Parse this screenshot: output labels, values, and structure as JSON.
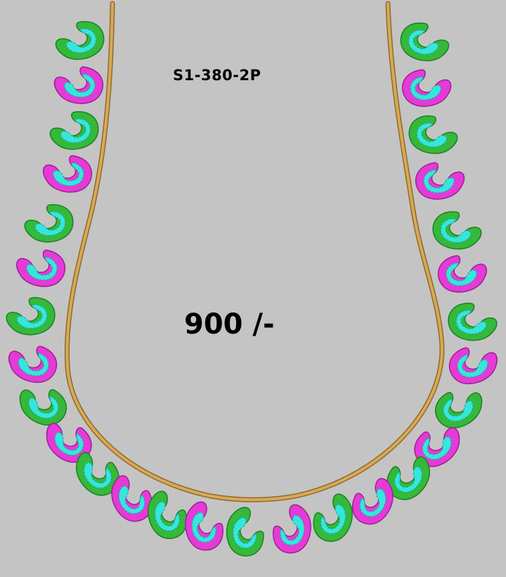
{
  "design": {
    "code": "S1-380-2P",
    "price": "900 /-"
  },
  "colors": {
    "background": "#c4c4c4",
    "cord": "#d8a956",
    "cord_shadow": "#8e6a2c",
    "green_outline": "#34b93a",
    "green_dark": "#1f7f24",
    "magenta_outline": "#e63ad8",
    "magenta_dark": "#9a2291",
    "fill": "#36e6dc",
    "fill_stitch": "#1fa7a0"
  },
  "motifs": {
    "count": 34,
    "pattern": [
      "green",
      "magenta"
    ],
    "shape": "paisley"
  }
}
